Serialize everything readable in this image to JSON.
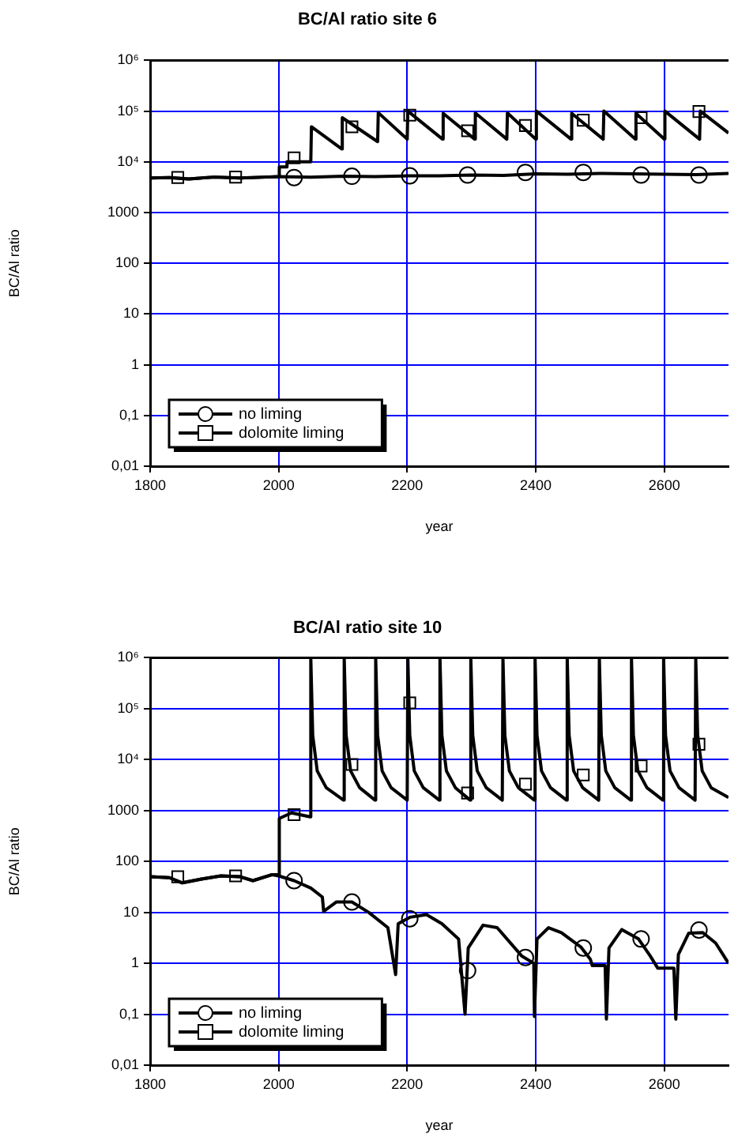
{
  "chart_data": [
    {
      "type": "line",
      "title": "BC/Al ratio site 6",
      "xlabel": "year",
      "ylabel": "BC/Al ratio",
      "xlim": [
        1800,
        2700
      ],
      "xticks": [
        1800,
        2000,
        2200,
        2400,
        2600
      ],
      "ylim": [
        0.01,
        1000000
      ],
      "yticks": [
        {
          "value": 0.01,
          "label": "0,01"
        },
        {
          "value": 0.1,
          "label": "0,1"
        },
        1,
        10,
        100,
        1000,
        {
          "value": 10000,
          "label": "10⁴"
        },
        {
          "value": 100000,
          "label": "10⁵"
        },
        {
          "value": 1000000,
          "label": "10⁶"
        }
      ],
      "log": "y",
      "grid": true,
      "legend": "bottom left",
      "series": [
        {
          "name": "no liming",
          "color": "#000000",
          "x": [
            1800,
            1830,
            1860,
            1900,
            1940,
            1980,
            2000,
            2050,
            2100,
            2150,
            2200,
            2250,
            2300,
            2350,
            2400,
            2450,
            2500,
            2550,
            2600,
            2650,
            2700
          ],
          "values": [
            4800,
            4900,
            4600,
            5000,
            4800,
            5000,
            5100,
            5000,
            5200,
            5100,
            5300,
            5300,
            5500,
            5400,
            5800,
            5700,
            5900,
            5800,
            5700,
            5600,
            5900
          ]
        },
        {
          "name": "dolomite liming",
          "color": "#000000",
          "x": [
            1800,
            1830,
            1860,
            1900,
            1940,
            1980,
            2000,
            2001,
            2012,
            2013,
            2050,
            2051,
            2098,
            2099,
            2154,
            2155,
            2200,
            2201,
            2255,
            2256,
            2305,
            2306,
            2355,
            2356,
            2400,
            2401,
            2455,
            2456,
            2505,
            2506,
            2555,
            2556,
            2600,
            2601,
            2655,
            2656,
            2700
          ],
          "values": [
            4800,
            4900,
            4600,
            5000,
            4800,
            5000,
            5100,
            7900,
            7900,
            10000,
            10000,
            49000,
            18000,
            74000,
            25000,
            93000,
            28000,
            100000,
            28000,
            90000,
            28000,
            92000,
            28000,
            92000,
            28000,
            100000,
            28000,
            90000,
            28000,
            100000,
            28000,
            90000,
            28000,
            100000,
            28000,
            100000,
            37000
          ]
        },
        {
          "type": "scatter",
          "marker": "circle",
          "color": "#000000",
          "x": [
            2024,
            2114,
            2204,
            2294,
            2384,
            2474,
            2564,
            2654
          ],
          "values": [
            4900,
            5200,
            5300,
            5500,
            6200,
            6200,
            5500,
            5500
          ]
        },
        {
          "type": "scatter",
          "marker": "square",
          "color": "#000000",
          "x": [
            1843,
            1933,
            2024,
            2114,
            2204,
            2294,
            2384,
            2474,
            2564,
            2654
          ],
          "values": [
            4900,
            5000,
            12000,
            49000,
            83000,
            41000,
            52000,
            66000,
            74000,
            98000
          ]
        }
      ]
    },
    {
      "type": "line",
      "title": "BC/Al ratio site 10",
      "xlabel": "year",
      "ylabel": "BC/Al ratio",
      "xlim": [
        1800,
        2700
      ],
      "xticks": [
        1800,
        2000,
        2200,
        2400,
        2600
      ],
      "ylim": [
        0.01,
        1000000
      ],
      "yticks": [
        {
          "value": 0.01,
          "label": "0,01"
        },
        {
          "value": 0.1,
          "label": "0,1"
        },
        1,
        10,
        100,
        1000,
        {
          "value": 10000,
          "label": "10⁴"
        },
        {
          "value": 100000,
          "label": "10⁵"
        },
        {
          "value": 1000000,
          "label": "10⁶"
        }
      ],
      "log": "y",
      "grid": true,
      "legend": "bottom left",
      "series": [
        {
          "name": "no liming",
          "color": "#000000",
          "x": [
            1800,
            1830,
            1850,
            1880,
            1910,
            1940,
            1960,
            1990,
            2000,
            2024,
            2050,
            2068,
            2070,
            2090,
            2114,
            2140,
            2170,
            2182,
            2186,
            2204,
            2230,
            2254,
            2280,
            2290,
            2295,
            2318,
            2340,
            2378,
            2397,
            2398,
            2402,
            2420,
            2440,
            2470,
            2485,
            2488,
            2508,
            2510,
            2514,
            2534,
            2560,
            2578,
            2590,
            2615,
            2618,
            2622,
            2638,
            2660,
            2680,
            2700
          ],
          "values": [
            50,
            48,
            38,
            45,
            52,
            50,
            42,
            55,
            52,
            42,
            30,
            20,
            10.5,
            16,
            16,
            10,
            5,
            0.6,
            6,
            8,
            9,
            6,
            3,
            0.1,
            2,
            5.6,
            5,
            1.4,
            1,
            0.09,
            3,
            5,
            4,
            2.1,
            1.2,
            0.9,
            0.9,
            0.08,
            2,
            4.6,
            3,
            1.4,
            0.8,
            0.8,
            0.08,
            1.5,
            3.9,
            4,
            2.5,
            1
          ]
        },
        {
          "name": "dolomite liming",
          "color": "#000000",
          "x": [
            1800,
            1830,
            1850,
            1880,
            1910,
            1940,
            1960,
            1990,
            2000,
            2001,
            2020,
            2049,
            2050,
            2053,
            2060,
            2074,
            2101,
            2102,
            2105,
            2112,
            2126,
            2150,
            2151,
            2154,
            2161,
            2175,
            2200,
            2201,
            2204,
            2211,
            2225,
            2250,
            2251,
            2254,
            2261,
            2275,
            2298,
            2299,
            2302,
            2309,
            2323,
            2348,
            2349,
            2352,
            2359,
            2373,
            2398,
            2399,
            2402,
            2409,
            2423,
            2448,
            2449,
            2452,
            2459,
            2473,
            2498,
            2499,
            2502,
            2509,
            2523,
            2548,
            2549,
            2552,
            2559,
            2573,
            2598,
            2599,
            2602,
            2609,
            2623,
            2648,
            2649,
            2652,
            2659,
            2673,
            2700
          ],
          "values": [
            50,
            48,
            38,
            45,
            52,
            50,
            42,
            55,
            55,
            700,
            900,
            750,
            1000000,
            30000,
            6000,
            2800,
            1600,
            1000000,
            30000,
            6000,
            2800,
            1600,
            1000000,
            30000,
            6000,
            2800,
            1600,
            1000000,
            30000,
            6000,
            2800,
            1600,
            1000000,
            30000,
            6000,
            2800,
            1600,
            1000000,
            30000,
            6000,
            2800,
            1600,
            1000000,
            30000,
            6000,
            2800,
            1600,
            1000000,
            30000,
            6000,
            2800,
            1600,
            1000000,
            30000,
            6000,
            2800,
            1600,
            1000000,
            30000,
            6000,
            2800,
            1600,
            1000000,
            30000,
            6000,
            2800,
            1600,
            1000000,
            30000,
            6000,
            2800,
            1600,
            1000000,
            30000,
            6000,
            2800,
            1800
          ]
        },
        {
          "type": "scatter",
          "marker": "circle",
          "color": "#000000",
          "x": [
            2024,
            2114,
            2204,
            2294,
            2384,
            2474,
            2564,
            2654
          ],
          "values": [
            42,
            16,
            7.5,
            0.72,
            1.3,
            2,
            3,
            4.5
          ]
        },
        {
          "type": "scatter",
          "marker": "square",
          "color": "#000000",
          "x": [
            1843,
            1933,
            2024,
            2114,
            2204,
            2294,
            2384,
            2474,
            2564,
            2654
          ],
          "values": [
            50,
            52,
            830,
            8000,
            130000,
            2200,
            3300,
            5000,
            7500,
            20000
          ]
        }
      ]
    }
  ]
}
